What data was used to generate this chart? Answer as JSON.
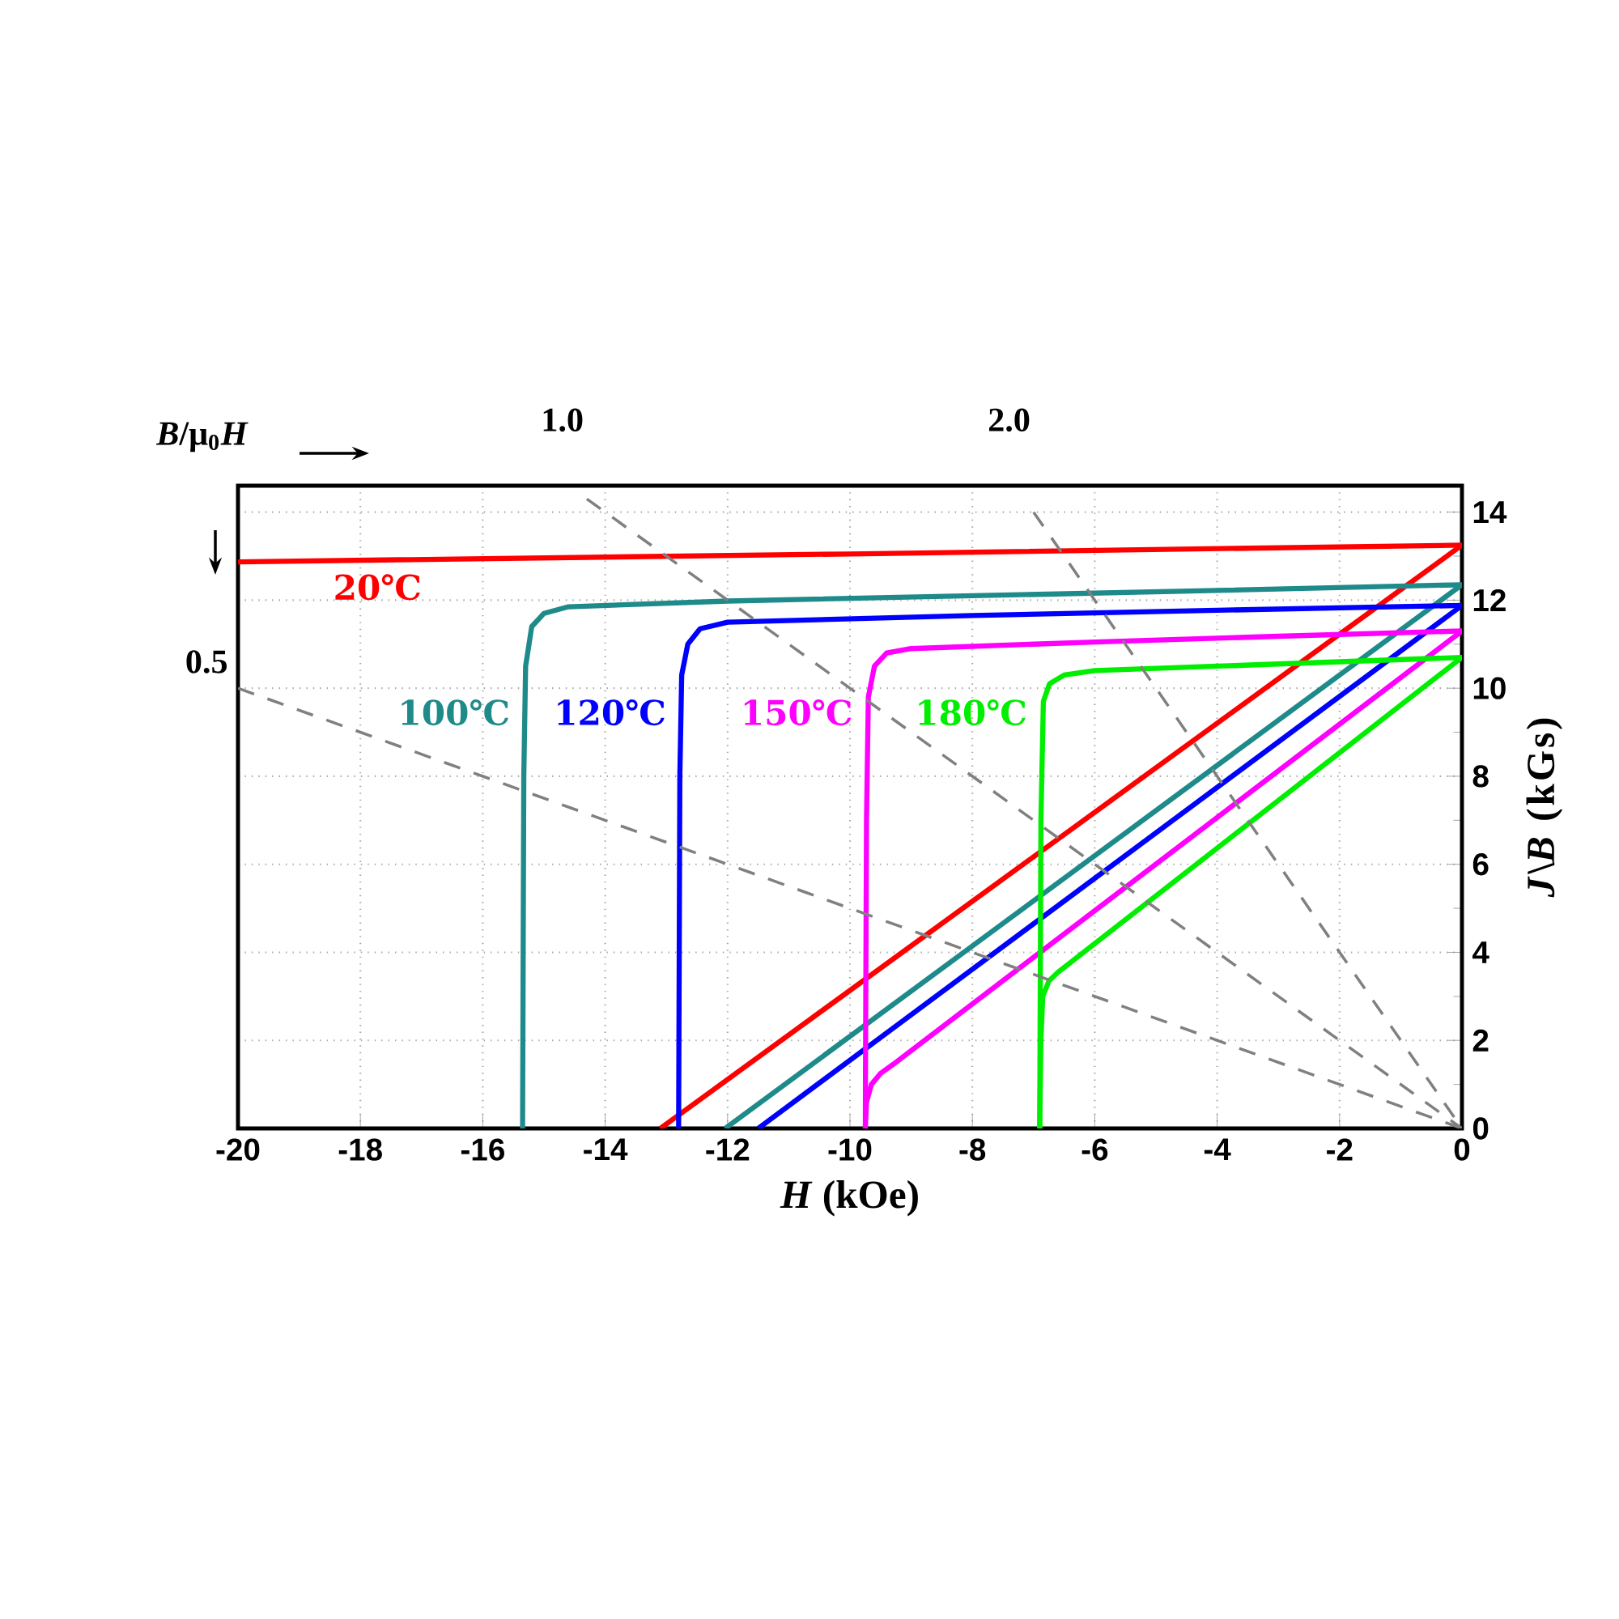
{
  "chart_data": {
    "type": "line",
    "xlabel": "*H* (kOe)",
    "ylabel": "*J*\\*B* (kGs)",
    "xlim": [
      -20,
      0
    ],
    "ylim": [
      0,
      14.6
    ],
    "xticks": [
      -20,
      -18,
      -16,
      -14,
      -12,
      -10,
      -8,
      -6,
      -4,
      -2,
      0
    ],
    "yticks": [
      0,
      2,
      4,
      6,
      8,
      10,
      12,
      14
    ],
    "grid": true,
    "marker": "none",
    "line_style": "solid",
    "series": [
      {
        "name": "20℃",
        "color": "#ff0000",
        "x": [
          -20,
          -10,
          0
        ],
        "values": [
          12.87,
          13.05,
          13.25
        ]
      },
      {
        "color": "#ff0000",
        "x": [
          -13.1,
          0
        ],
        "values": [
          0,
          13.25
        ]
      },
      {
        "name": "100℃",
        "color": "#1f8a8a",
        "x": [
          -15.35,
          -15.33,
          -15.3,
          -15.2,
          -15.0,
          -14.6,
          -12,
          -8,
          -4,
          0
        ],
        "values": [
          0,
          8,
          10.5,
          11.4,
          11.7,
          11.85,
          11.98,
          12.1,
          12.22,
          12.35
        ]
      },
      {
        "color": "#1f8a8a",
        "x": [
          -12.04,
          0
        ],
        "values": [
          0,
          12.35
        ]
      },
      {
        "name": "120℃",
        "color": "#0000ff",
        "x": [
          -12.8,
          -12.78,
          -12.75,
          -12.65,
          -12.45,
          -12.0,
          -8,
          -4,
          0
        ],
        "values": [
          0,
          8,
          10.3,
          11.0,
          11.35,
          11.5,
          11.65,
          11.77,
          11.88
        ]
      },
      {
        "color": "#0000ff",
        "x": [
          -11.5,
          0
        ],
        "values": [
          0,
          11.88
        ]
      },
      {
        "name": "150℃",
        "color": "#ff00ff",
        "x": [
          -9.75,
          -9.73,
          -9.7,
          -9.6,
          -9.4,
          -9.0,
          -6,
          -3,
          0
        ],
        "values": [
          0,
          7,
          9.8,
          10.5,
          10.8,
          10.9,
          11.05,
          11.18,
          11.3
        ]
      },
      {
        "color": "#ff00ff",
        "x": [
          -9.75,
          -9.73,
          -9.65,
          -9.5,
          -9.3,
          0
        ],
        "values": [
          0,
          0.6,
          1.0,
          1.25,
          1.45,
          11.3
        ]
      },
      {
        "name": "180℃",
        "color": "#00ee00",
        "x": [
          -6.9,
          -6.88,
          -6.84,
          -6.74,
          -6.5,
          -6.0,
          -4,
          -2,
          0
        ],
        "values": [
          0,
          7,
          9.7,
          10.1,
          10.3,
          10.4,
          10.5,
          10.6,
          10.7
        ]
      },
      {
        "color": "#00ee00",
        "x": [
          -6.9,
          -6.88,
          -6.85,
          -6.75,
          -6.6,
          0
        ],
        "values": [
          0,
          2.0,
          3.0,
          3.35,
          3.55,
          10.7
        ]
      },
      {
        "color": "#808080",
        "line_style": "dashed",
        "x": [
          -20,
          0
        ],
        "values": [
          10,
          0
        ]
      },
      {
        "color": "#808080",
        "line_style": "dashed",
        "x": [
          -14.3,
          0
        ],
        "values": [
          14.3,
          0
        ]
      },
      {
        "color": "#808080",
        "line_style": "dashed",
        "x": [
          -7.0,
          0
        ],
        "values": [
          14.0,
          0
        ]
      }
    ],
    "annotations": [
      "*B*/μ$_{0}$*H*",
      {
        "text": "0.5",
        "x": -20,
        "y": 10
      },
      {
        "text": "1.0",
        "x": -14.3,
        "y": 14.3
      },
      {
        "text": "2.0",
        "x": -7.0,
        "y": 14.0
      }
    ]
  }
}
